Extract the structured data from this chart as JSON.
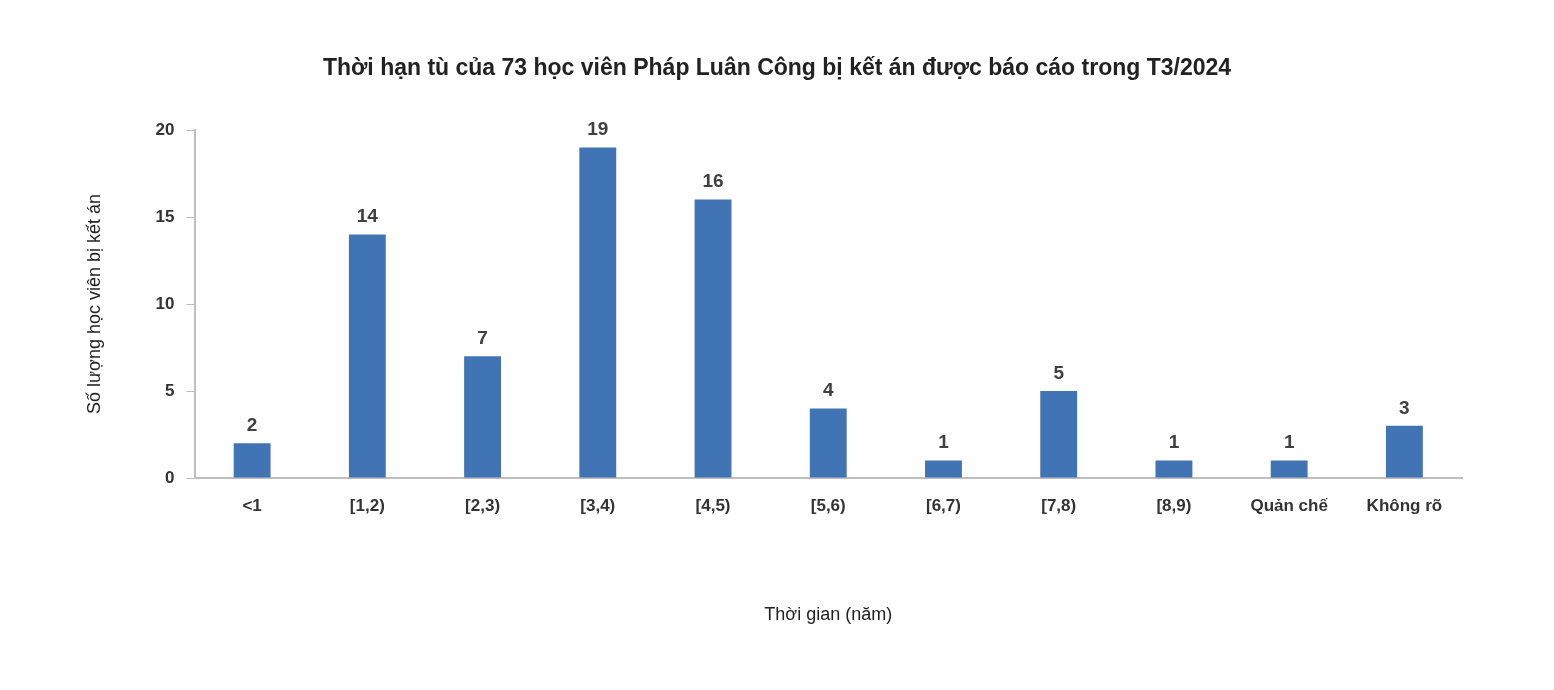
{
  "chart_data": {
    "type": "bar",
    "title": "Thời hạn tù của 73 học viên Pháp Luân Công bị kết án được báo cáo trong T3/2024",
    "xlabel": "Thời gian (năm)",
    "ylabel": "Số lượng học viên bị kết án",
    "categories": [
      "<1",
      "[1,2)",
      "[2,3)",
      "[3,4)",
      "[4,5)",
      "[5,6)",
      "[6,7)",
      "[7,8)",
      "[8,9)",
      "Quản chế",
      "Không rõ"
    ],
    "values": [
      2,
      14,
      7,
      19,
      16,
      4,
      1,
      5,
      1,
      1,
      3
    ],
    "color": "#4174b4",
    "ylim": [
      0,
      20
    ],
    "yticks": [
      0,
      5,
      10,
      15,
      20
    ],
    "grid": false,
    "legend": false,
    "data_labels": true
  }
}
